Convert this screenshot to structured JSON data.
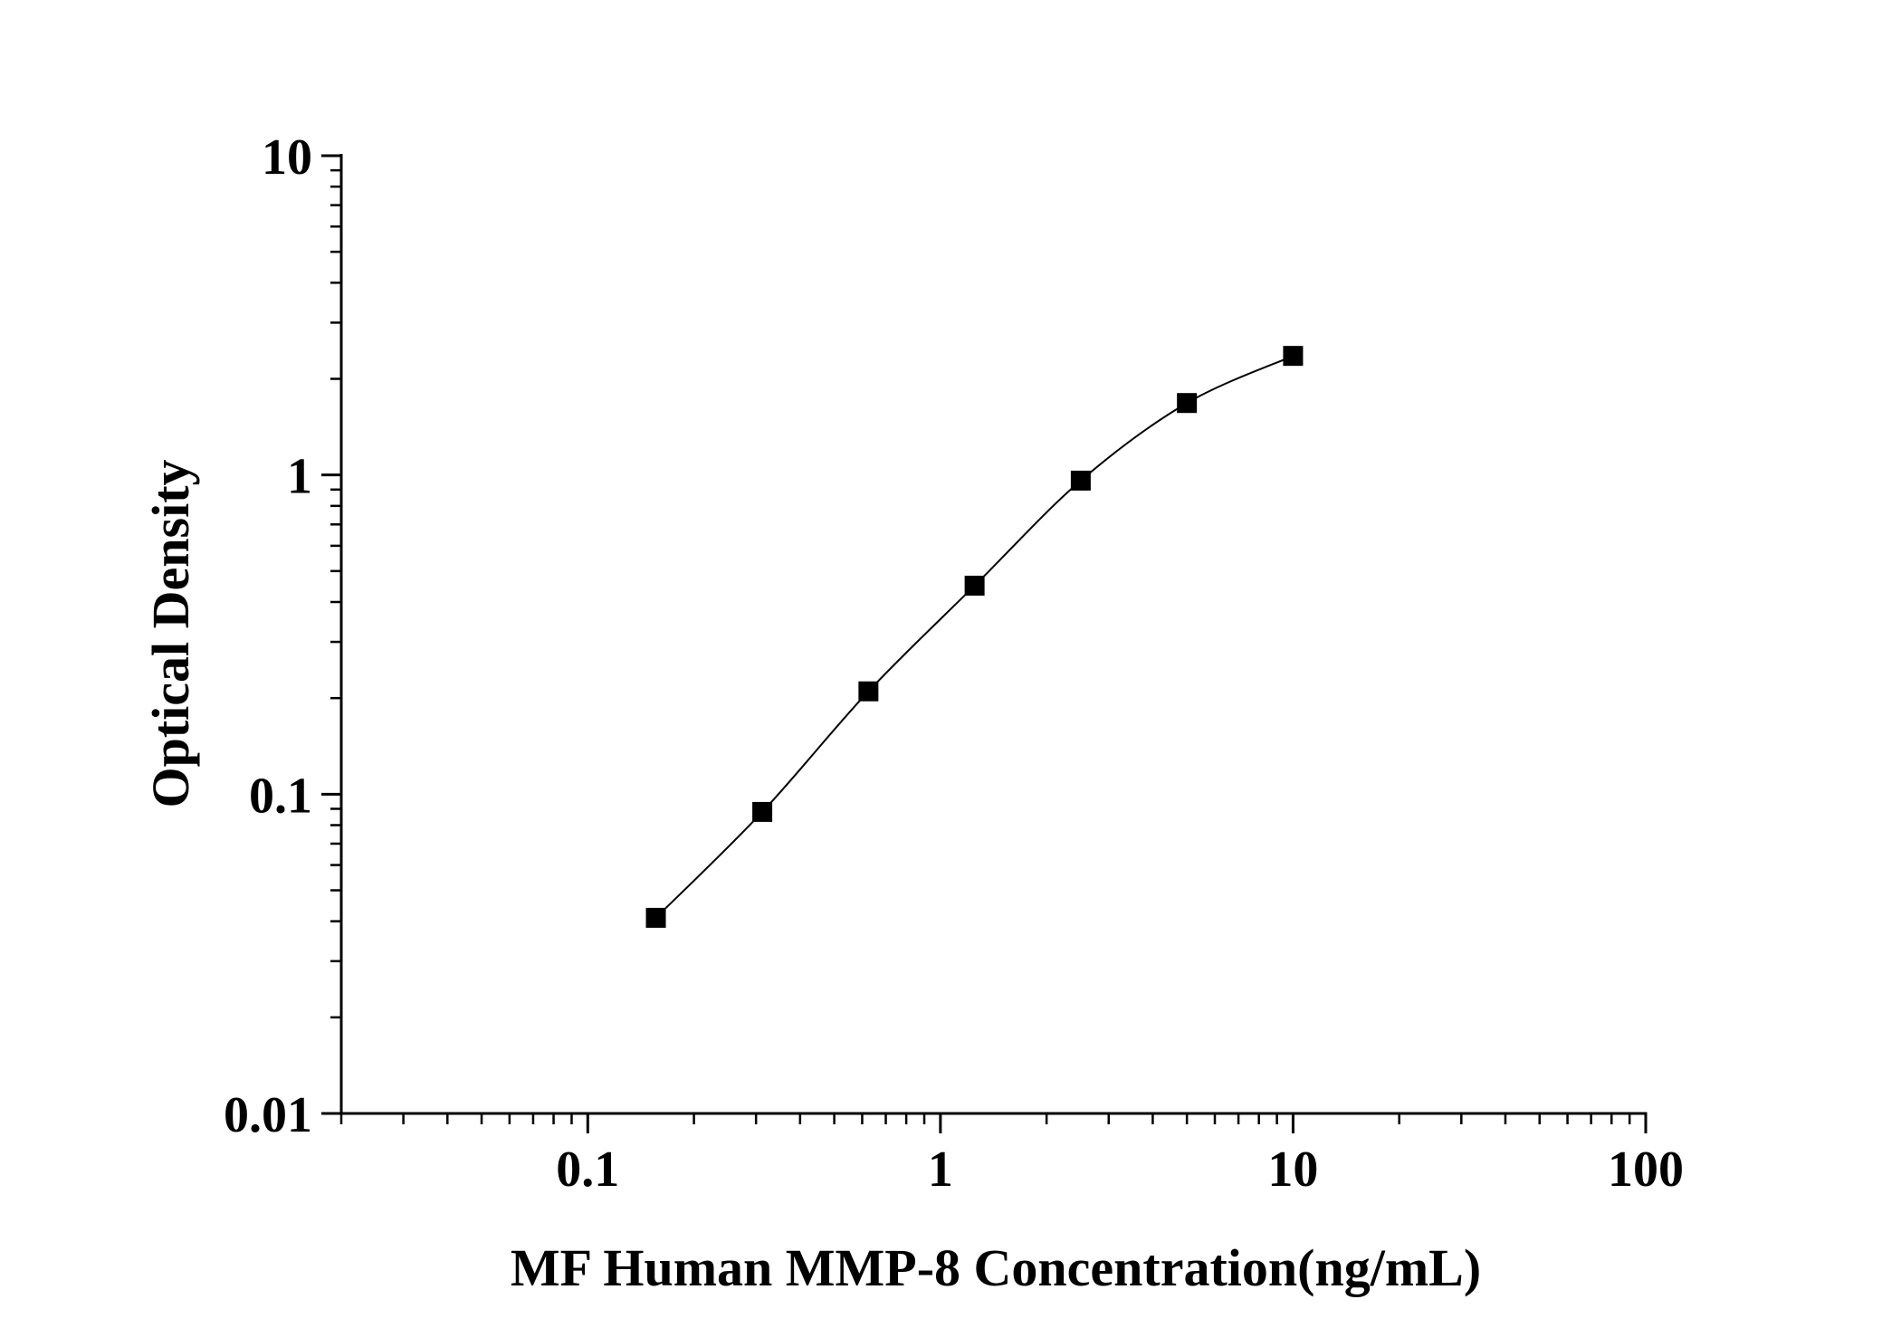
{
  "chart_data": {
    "type": "scatter",
    "xlabel": "MF Human MMP-8 Concentration(ng/mL)",
    "ylabel": "Optical Density",
    "xscale": "log",
    "yscale": "log",
    "xlim": [
      0.02,
      100
    ],
    "ylim": [
      0.01,
      10
    ],
    "x_ticks": [
      {
        "value": 0.1,
        "label": "0.1"
      },
      {
        "value": 1,
        "label": "1"
      },
      {
        "value": 10,
        "label": "10"
      },
      {
        "value": 100,
        "label": "100"
      }
    ],
    "y_ticks": [
      {
        "value": 0.01,
        "label": "0.01"
      },
      {
        "value": 0.1,
        "label": "0.1"
      },
      {
        "value": 1,
        "label": "1"
      },
      {
        "value": 10,
        "label": "10"
      }
    ],
    "grid": false,
    "series": [
      {
        "points": [
          {
            "x": 0.156,
            "y": 0.041
          },
          {
            "x": 0.3125,
            "y": 0.088
          },
          {
            "x": 0.625,
            "y": 0.21
          },
          {
            "x": 1.25,
            "y": 0.45
          },
          {
            "x": 2.5,
            "y": 0.96
          },
          {
            "x": 5,
            "y": 1.68
          },
          {
            "x": 10,
            "y": 2.36
          }
        ],
        "marker": "square",
        "color": "#000000",
        "fit_curve": true
      }
    ]
  }
}
